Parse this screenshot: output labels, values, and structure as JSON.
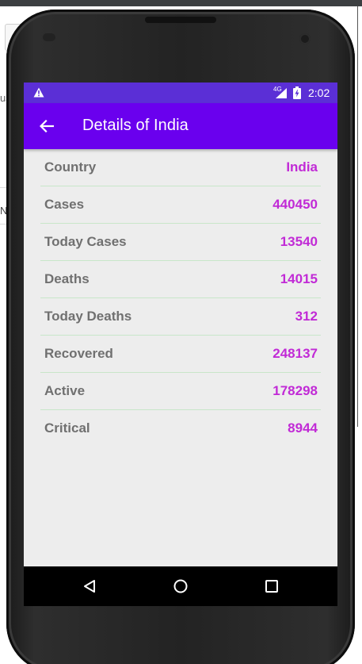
{
  "status_bar": {
    "network": "4G",
    "time": "2:02"
  },
  "app_bar": {
    "title": "Details of India"
  },
  "details": [
    {
      "label": "Country",
      "value": "India"
    },
    {
      "label": "Cases",
      "value": "440450"
    },
    {
      "label": "Today Cases",
      "value": "13540"
    },
    {
      "label": "Deaths",
      "value": "14015"
    },
    {
      "label": "Today Deaths",
      "value": "312"
    },
    {
      "label": "Recovered",
      "value": "248137"
    },
    {
      "label": "Active",
      "value": "178298"
    },
    {
      "label": "Critical",
      "value": "8944"
    }
  ],
  "background_fragments": {
    "text_a": "us",
    "text_b": "N"
  },
  "icons": {
    "back": "arrow-left-icon",
    "nav_back": "triangle-back-icon",
    "nav_home": "circle-home-icon",
    "nav_recents": "square-recents-icon",
    "warning": "warning-icon",
    "signal": "signal-icon",
    "battery": "battery-icon"
  },
  "colors": {
    "status_bar": "#5b2fd6",
    "app_bar": "#6a00ee",
    "label": "#707070",
    "value": "#c12ad6",
    "divider": "#c8e6c9",
    "screen_bg": "#ededed"
  }
}
